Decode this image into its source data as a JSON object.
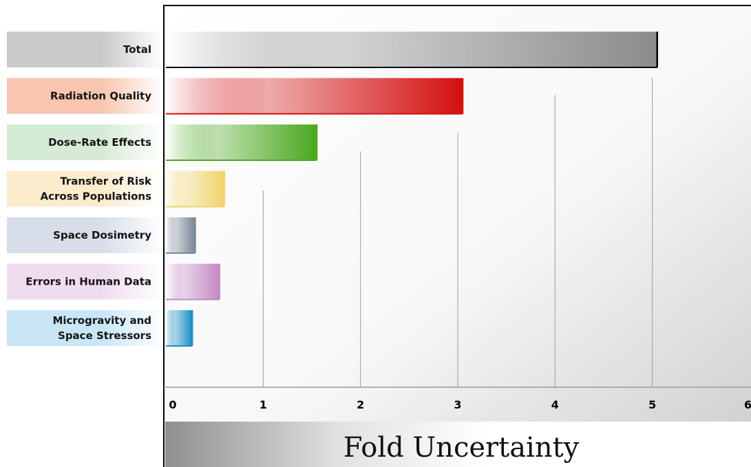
{
  "chart_data": {
    "type": "bar",
    "orientation": "horizontal",
    "categories": [
      [
        "Total"
      ],
      [
        "Radiation Quality"
      ],
      [
        "Dose-Rate Effects"
      ],
      [
        "Transfer of Risk",
        "Across Populations"
      ],
      [
        "Space Dosimetry"
      ],
      [
        "Errors in Human Data"
      ],
      [
        "Microgravity and",
        "Space Stressors"
      ]
    ],
    "values": [
      5.05,
      3.05,
      1.55,
      0.6,
      0.3,
      0.55,
      0.27
    ],
    "colors": [
      "#8c8c8e",
      "#d40f0f",
      "#4aa81e",
      "#f0d36b",
      "#7a8796",
      "#c589c4",
      "#1c8fc4"
    ],
    "label_colors": [
      "#c9c8ca",
      "#f8c5b0",
      "#d5ebd5",
      "#fcebcd",
      "#d7dde9",
      "#f0dcef",
      "#c8e6f5"
    ],
    "xlabel": "Fold Uncertainty",
    "xlim": [
      0,
      6
    ],
    "xticks": [
      0,
      1,
      2,
      3,
      4,
      5,
      6
    ],
    "grid": true
  }
}
